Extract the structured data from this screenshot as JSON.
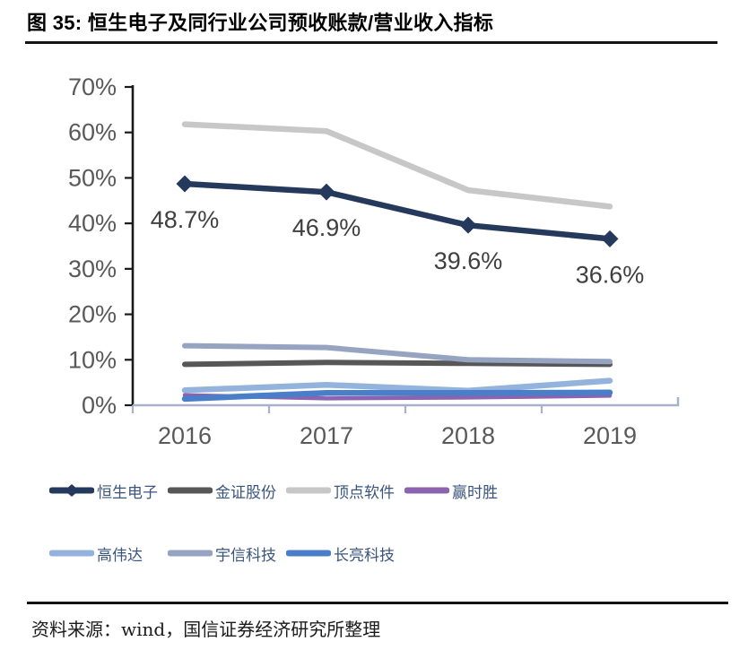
{
  "header": {
    "title": "图 35: 恒生电子及同行业公司预收账款/营业收入指标"
  },
  "footer": {
    "source": "资料来源：wind，国信证券经济研究所整理"
  },
  "colors": {
    "y_axis_line": "#1a1a1a",
    "x_axis_line": "#A7B1CC",
    "tick_label": "#595959",
    "data_label": "#3f3f3f",
    "legend_text": "#3A557D",
    "rule": "#141414"
  },
  "chart_data": {
    "type": "line",
    "title": "恒生电子及同行业公司预收账款/营业收入指标",
    "categories": [
      "2016",
      "2017",
      "2018",
      "2019"
    ],
    "series": [
      {
        "name": "恒生电子",
        "color": "#24395B",
        "marker": "diamond",
        "values": [
          48.7,
          46.9,
          39.6,
          36.6
        ],
        "labels": [
          "48.7%",
          "46.9%",
          "39.6%",
          "36.6%"
        ]
      },
      {
        "name": "金证股份",
        "color": "#575757",
        "values": [
          9.0,
          9.4,
          9.2,
          9.0
        ]
      },
      {
        "name": "顶点软件",
        "color": "#C7C7C7",
        "values": [
          61.8,
          60.3,
          47.3,
          43.7
        ]
      },
      {
        "name": "赢时胜",
        "color": "#8C63AE",
        "values": [
          2.2,
          1.5,
          1.7,
          2.1
        ]
      },
      {
        "name": "高伟达",
        "color": "#93B3DD",
        "values": [
          3.3,
          4.5,
          3.2,
          5.4
        ]
      },
      {
        "name": "宇信科技",
        "color": "#96A3C1",
        "values": [
          13.1,
          12.7,
          10.0,
          9.6
        ]
      },
      {
        "name": "长亮科技",
        "color": "#4A7EC9",
        "values": [
          1.4,
          2.7,
          2.7,
          2.8
        ]
      }
    ],
    "ylim": [
      0,
      70
    ],
    "ytick_labels": [
      "70%",
      "60%",
      "50%",
      "40%",
      "30%",
      "20%",
      "10%",
      "0%"
    ],
    "grid": "off",
    "legend_position": "bottom",
    "legend_rows": [
      [
        "恒生电子",
        "金证股份",
        "顶点软件",
        "赢时胜"
      ],
      [
        "高伟达",
        "宇信科技",
        "长亮科技"
      ]
    ]
  }
}
